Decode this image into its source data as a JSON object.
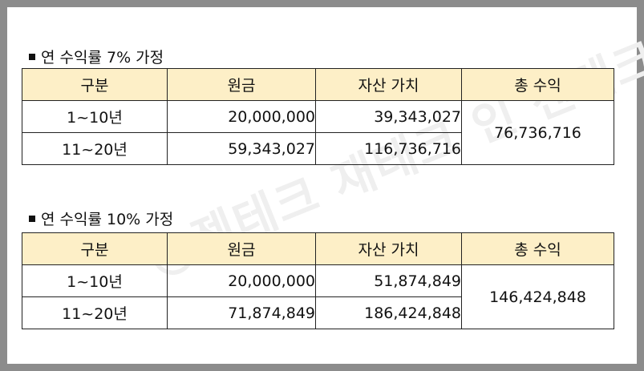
{
  "watermark": "@젠테크 재테크 인 젠테크",
  "sections": [
    {
      "title": "연 수익률 7% 가정",
      "headers": [
        "구분",
        "원금",
        "자산 가치",
        "총 수익"
      ],
      "rows": [
        {
          "period": "1~10년",
          "principal": "20,000,000",
          "asset_value": "39,343,027"
        },
        {
          "period": "11~20년",
          "principal": "59,343,027",
          "asset_value": "116,736,716"
        }
      ],
      "total_profit": "76,736,716"
    },
    {
      "title": "연 수익률 10% 가정",
      "headers": [
        "구분",
        "원금",
        "자산 가치",
        "총 수익"
      ],
      "rows": [
        {
          "period": "1~10년",
          "principal": "20,000,000",
          "asset_value": "51,874,849"
        },
        {
          "period": "11~20년",
          "principal": "71,874,849",
          "asset_value": "186,424,848"
        }
      ],
      "total_profit": "146,424,848"
    }
  ]
}
